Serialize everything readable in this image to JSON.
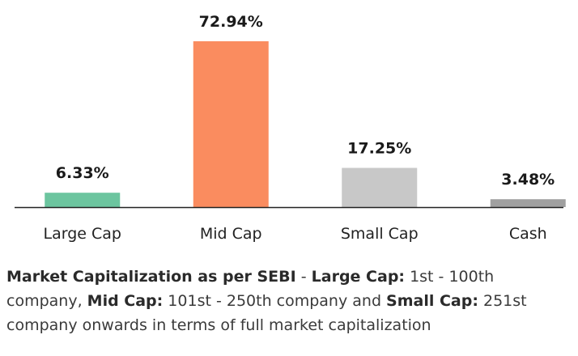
{
  "chart_data": {
    "type": "bar",
    "categories": [
      "Large Cap",
      "Mid Cap",
      "Small Cap",
      "Cash"
    ],
    "values": [
      6.33,
      72.94,
      17.25,
      3.48
    ],
    "value_labels": [
      "6.33%",
      "72.94%",
      "17.25%",
      "3.48%"
    ],
    "colors": [
      "#6cc59f",
      "#fa8c5f",
      "#c8c8c8",
      "#a0a0a0"
    ],
    "axis_color": "#222222",
    "title": "",
    "xlabel": "",
    "ylabel": "",
    "ylim": [
      0,
      72.94
    ],
    "grid": false,
    "legend": "none"
  },
  "note": {
    "bold1": "Market Capitalization as per SEBI",
    "text1": " - ",
    "bold2": "Large Cap:",
    "text2": " 1st - 100th company, ",
    "bold3": "Mid Cap:",
    "text3": " 101st - 250th company and ",
    "bold4": "Small Cap:",
    "text4": " 251st company onwards in terms of full market capitalization"
  }
}
